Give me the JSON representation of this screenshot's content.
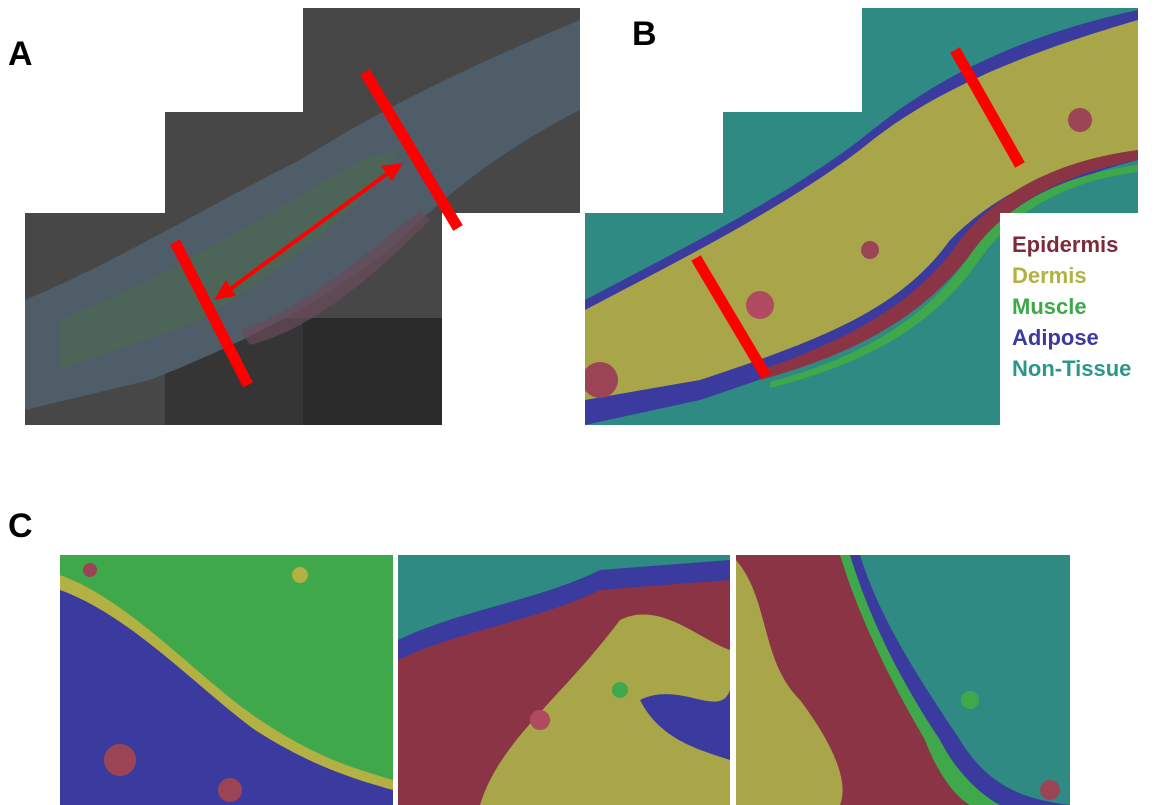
{
  "panels": [
    {
      "label": "A"
    },
    {
      "label": "B",
      "legend": [
        {
          "name": "Epidermis",
          "color": "#7d2b3a"
        },
        {
          "name": "Dermis",
          "color": "#b3b044"
        },
        {
          "name": "Muscle",
          "color": "#3ea84a"
        },
        {
          "name": "Adipose",
          "color": "#3b3a9e"
        },
        {
          "name": "Non-Tissue",
          "color": "#2c968a"
        }
      ]
    },
    {
      "label": "C"
    }
  ]
}
